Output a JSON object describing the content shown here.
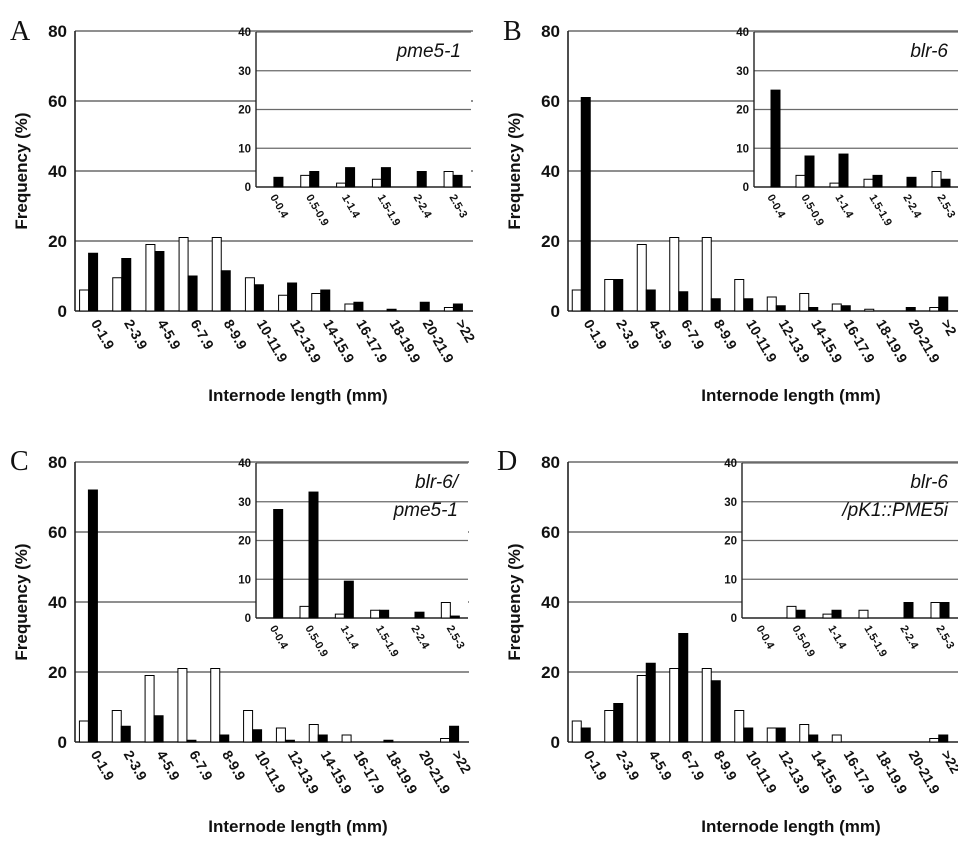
{
  "chart_data": [
    {
      "type": "bar",
      "panel": "A",
      "xlabel": "Internode length (mm)",
      "ylabel": "Frequency (%)",
      "ylim": [
        0,
        80
      ],
      "yticks": [
        0,
        20,
        40,
        60,
        80
      ],
      "categories": [
        "0-1.9",
        "2-3.9",
        "4-5.9",
        "6-7.9",
        "8-9.9",
        "10-11.9",
        "12-13.9",
        "14-15.9",
        "16-17.9",
        "18-19.9",
        "20-21.9",
        ">22"
      ],
      "series": [
        {
          "color": "#ffffff",
          "values": [
            6,
            9.5,
            19,
            21,
            21,
            9.5,
            4.5,
            5,
            2,
            0,
            0,
            1
          ]
        },
        {
          "color": "#000000",
          "values": [
            16.5,
            15,
            17,
            10,
            11.5,
            7.5,
            8,
            6,
            2.5,
            0.5,
            2.5,
            2
          ]
        }
      ],
      "inset": {
        "title": "pme5-1",
        "ylim": [
          0,
          40
        ],
        "yticks": [
          0,
          10,
          20,
          30,
          40
        ],
        "categories": [
          "0-0.4",
          "0.5-0.9",
          "1-1.4",
          "1.5-1.9",
          "2-2.4",
          "2.5-3"
        ],
        "series": [
          {
            "color": "#ffffff",
            "values": [
              0,
              3,
              1,
              2,
              0,
              4
            ]
          },
          {
            "color": "#000000",
            "values": [
              2.5,
              4,
              5,
              5,
              4,
              3
            ]
          }
        ]
      }
    },
    {
      "type": "bar",
      "panel": "B",
      "xlabel": "Internode length (mm)",
      "ylabel": "Frequency (%)",
      "ylim": [
        0,
        80
      ],
      "yticks": [
        0,
        20,
        40,
        60,
        80
      ],
      "categories": [
        "0-1.9",
        "2-3.9",
        "4-5.9",
        "6-7.9",
        "8-9.9",
        "10-11.9",
        "12-13.9",
        "14-15.9",
        "16-17.9",
        "18-19.9",
        "20-21.9",
        ">2"
      ],
      "series": [
        {
          "color": "#ffffff",
          "values": [
            6,
            9,
            19,
            21,
            21,
            9,
            4,
            5,
            2,
            0.5,
            0,
            1
          ]
        },
        {
          "color": "#000000",
          "values": [
            61,
            9,
            6,
            5.5,
            3.5,
            3.5,
            1.5,
            1,
            1.5,
            0,
            1,
            4
          ]
        }
      ],
      "inset": {
        "title": "blr-6",
        "ylim": [
          0,
          40
        ],
        "yticks": [
          0,
          10,
          20,
          30,
          40
        ],
        "categories": [
          "0-0.4",
          "0.5-0.9",
          "1-1.4",
          "1.5-1.9",
          "2-2.4",
          "2.5-3"
        ],
        "series": [
          {
            "color": "#ffffff",
            "values": [
              0,
              3,
              1,
              2,
              0,
              4
            ]
          },
          {
            "color": "#000000",
            "values": [
              25,
              8,
              8.5,
              3,
              2.5,
              2
            ]
          }
        ]
      }
    },
    {
      "type": "bar",
      "panel": "C",
      "xlabel": "Internode length (mm)",
      "ylabel": "Frequency (%)",
      "ylim": [
        0,
        80
      ],
      "yticks": [
        0,
        20,
        40,
        60,
        80
      ],
      "categories": [
        "0-1.9",
        "2-3.9",
        "4-5.9",
        "6-7.9",
        "8-9.9",
        "10-11.9",
        "12-13.9",
        "14-15.9",
        "16-17.9",
        "18-19.9",
        "20-21.9",
        ">22"
      ],
      "series": [
        {
          "color": "#ffffff",
          "values": [
            6,
            9,
            19,
            21,
            21,
            9,
            4,
            5,
            2,
            0,
            0,
            1
          ]
        },
        {
          "color": "#000000",
          "values": [
            72,
            4.5,
            7.5,
            0.5,
            2,
            3.5,
            0.5,
            2,
            0,
            0.5,
            0,
            4.5
          ]
        }
      ],
      "inset": {
        "title": [
          "blr-6/",
          "pme5-1"
        ],
        "ylim": [
          0,
          40
        ],
        "yticks": [
          0,
          10,
          20,
          30,
          40
        ],
        "categories": [
          "0-0.4",
          "0.5-0.9",
          "1-1.4",
          "1.5-1.9",
          "2-2.4",
          "2.5-3"
        ],
        "series": [
          {
            "color": "#ffffff",
            "values": [
              0,
              3,
              1,
              2,
              0,
              4
            ]
          },
          {
            "color": "#000000",
            "values": [
              28,
              32.5,
              9.5,
              2,
              1.5,
              0.5
            ]
          }
        ]
      }
    },
    {
      "type": "bar",
      "panel": "D",
      "xlabel": "Internode length (mm)",
      "ylabel": "Frequency (%)",
      "ylim": [
        0,
        80
      ],
      "yticks": [
        0,
        20,
        40,
        60,
        80
      ],
      "categories": [
        "0-1.9",
        "2-3.9",
        "4-5.9",
        "6-7.9",
        "8-9.9",
        "10-11.9",
        "12-13.9",
        "14-15.9",
        "16-17.9",
        "18-19.9",
        "20-21.9",
        ">22"
      ],
      "series": [
        {
          "color": "#ffffff",
          "values": [
            6,
            9,
            19,
            21,
            21,
            9,
            4,
            5,
            2,
            0,
            0,
            1
          ]
        },
        {
          "color": "#000000",
          "values": [
            4,
            11,
            22.5,
            31,
            17.5,
            4,
            4,
            2,
            0,
            0,
            0,
            2
          ]
        }
      ],
      "inset": {
        "title": [
          "blr-6",
          "/pK1::PME5i"
        ],
        "ylim": [
          0,
          40
        ],
        "yticks": [
          0,
          10,
          20,
          30,
          40
        ],
        "categories": [
          "0-0.4",
          "0.5-0.9",
          "1-1.4",
          "1.5-1.9",
          "2-2.4",
          "2.5-3"
        ],
        "series": [
          {
            "color": "#ffffff",
            "values": [
              0,
              3,
              1,
              2,
              0,
              4
            ]
          },
          {
            "color": "#000000",
            "values": [
              0,
              2,
              2,
              0,
              4,
              4
            ]
          }
        ]
      }
    }
  ]
}
